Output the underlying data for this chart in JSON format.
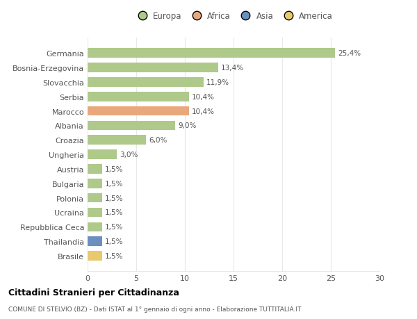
{
  "countries": [
    "Germania",
    "Bosnia-Erzegovina",
    "Slovacchia",
    "Serbia",
    "Marocco",
    "Albania",
    "Croazia",
    "Ungheria",
    "Austria",
    "Bulgaria",
    "Polonia",
    "Ucraina",
    "Repubblica Ceca",
    "Thailandia",
    "Brasile"
  ],
  "values": [
    25.4,
    13.4,
    11.9,
    10.4,
    10.4,
    9.0,
    6.0,
    3.0,
    1.5,
    1.5,
    1.5,
    1.5,
    1.5,
    1.5,
    1.5
  ],
  "labels": [
    "25,4%",
    "13,4%",
    "11,9%",
    "10,4%",
    "10,4%",
    "9,0%",
    "6,0%",
    "3,0%",
    "1,5%",
    "1,5%",
    "1,5%",
    "1,5%",
    "1,5%",
    "1,5%",
    "1,5%"
  ],
  "colors": [
    "#aec98a",
    "#aec98a",
    "#aec98a",
    "#aec98a",
    "#e8a87c",
    "#aec98a",
    "#aec98a",
    "#aec98a",
    "#aec98a",
    "#aec98a",
    "#aec98a",
    "#aec98a",
    "#aec98a",
    "#6b8fbf",
    "#e8c96e"
  ],
  "continent_colors": {
    "Europa": "#aec98a",
    "Africa": "#e8a87c",
    "Asia": "#6b8fbf",
    "America": "#e8c96e"
  },
  "title": "Cittadini Stranieri per Cittadinanza",
  "subtitle": "COMUNE DI STELVIO (BZ) - Dati ISTAT al 1° gennaio di ogni anno - Elaborazione TUTTITALIA.IT",
  "xlim": [
    0,
    30
  ],
  "xticks": [
    0,
    5,
    10,
    15,
    20,
    25,
    30
  ],
  "bg_color": "#ffffff",
  "grid_color": "#e8e8e8",
  "bar_height": 0.65
}
